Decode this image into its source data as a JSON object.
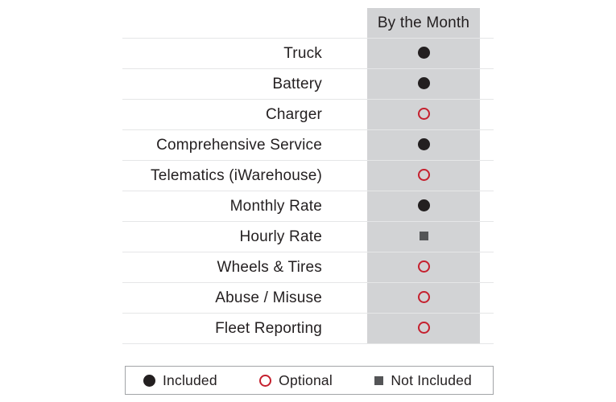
{
  "table": {
    "column_header": "By the Month",
    "rows": [
      {
        "label": "Truck",
        "status": "included"
      },
      {
        "label": "Battery",
        "status": "included"
      },
      {
        "label": "Charger",
        "status": "optional"
      },
      {
        "label": "Comprehensive Service",
        "status": "included"
      },
      {
        "label": "Telematics (iWarehouse)",
        "status": "optional"
      },
      {
        "label": "Monthly Rate",
        "status": "included"
      },
      {
        "label": "Hourly Rate",
        "status": "not_included"
      },
      {
        "label": "Wheels & Tires",
        "status": "optional"
      },
      {
        "label": "Abuse / Misuse",
        "status": "optional"
      },
      {
        "label": "Fleet Reporting",
        "status": "optional"
      }
    ]
  },
  "legend": {
    "items": [
      {
        "symbol": "included",
        "label": "Included"
      },
      {
        "symbol": "optional",
        "label": "Optional"
      },
      {
        "symbol": "not_included",
        "label": "Not Included"
      }
    ]
  },
  "colors": {
    "text": "#231f20",
    "included": "#231f20",
    "optional_ring": "#c5202e",
    "not_included": "#545557",
    "column_bg": "#d2d3d5",
    "row_line": "#e5e6e7",
    "legend_border": "#a2a4a7"
  },
  "chart_data": {
    "type": "table",
    "title": "By the Month",
    "columns": [
      "",
      "By the Month"
    ],
    "rows": [
      [
        "Truck",
        "Included"
      ],
      [
        "Battery",
        "Included"
      ],
      [
        "Charger",
        "Optional"
      ],
      [
        "Comprehensive Service",
        "Included"
      ],
      [
        "Telematics (iWarehouse)",
        "Optional"
      ],
      [
        "Monthly Rate",
        "Included"
      ],
      [
        "Hourly Rate",
        "Not Included"
      ],
      [
        "Wheels & Tires",
        "Optional"
      ],
      [
        "Abuse / Misuse",
        "Optional"
      ],
      [
        "Fleet Reporting",
        "Optional"
      ]
    ],
    "legend": [
      {
        "symbol": "filled-black-circle",
        "meaning": "Included"
      },
      {
        "symbol": "open-red-circle",
        "meaning": "Optional"
      },
      {
        "symbol": "gray-square",
        "meaning": "Not Included"
      }
    ],
    "layout": {
      "grid": "horizontal-row-dividers",
      "legend_position": "bottom"
    }
  }
}
